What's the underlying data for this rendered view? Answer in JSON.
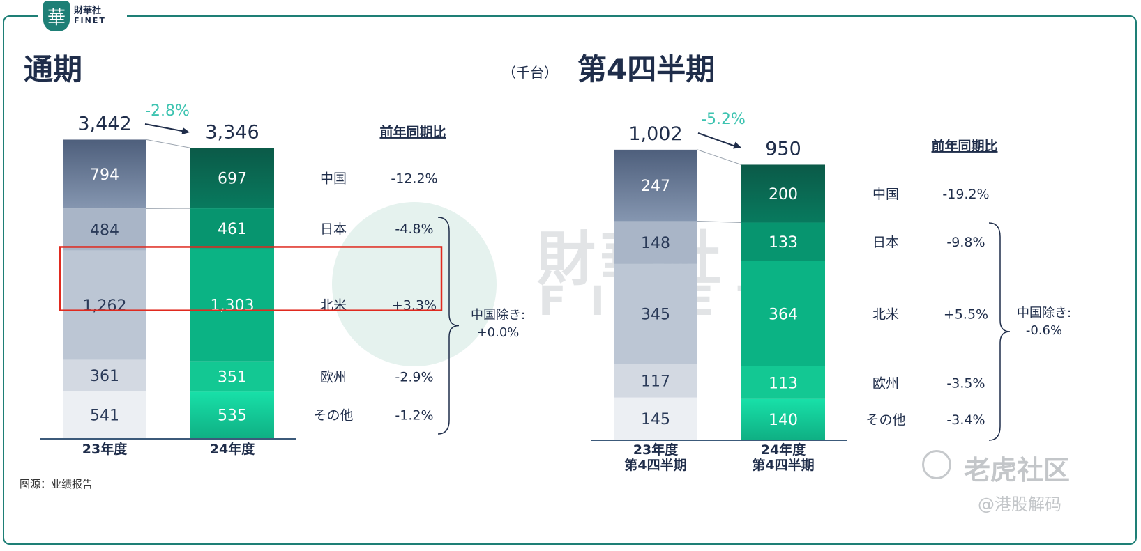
{
  "logo": {
    "glyph": "華",
    "name_cn": "財華社",
    "name_en": "FINET"
  },
  "unit_label": "（千台）",
  "source": "图源：业绩报告",
  "watermarks": {
    "finet_cn": "財華社",
    "finet_en": "FINET",
    "tiger": "老虎社区",
    "handle": "@港股解码"
  },
  "colors": {
    "frame": "#1e7f76",
    "highlight": "#e02a1f",
    "pct": "#3cc3b0"
  },
  "chart_data": [
    {
      "type": "bar",
      "title": "通期",
      "categories": [
        "23年度",
        "24年度"
      ],
      "stack_order": [
        "中国",
        "日本",
        "北米",
        "欧州",
        "その他"
      ],
      "series": [
        {
          "name": "中国",
          "values": [
            794,
            697
          ]
        },
        {
          "name": "日本",
          "values": [
            484,
            461
          ]
        },
        {
          "name": "北米",
          "values": [
            1262,
            1303
          ]
        },
        {
          "name": "欧州",
          "values": [
            361,
            351
          ]
        },
        {
          "name": "その他",
          "values": [
            541,
            535
          ]
        }
      ],
      "totals": [
        "3,442",
        "3,346"
      ],
      "value_labels": [
        [
          "794",
          "484",
          "1,262",
          "361",
          "541"
        ],
        [
          "697",
          "461",
          "1,303",
          "351",
          "535"
        ]
      ],
      "total_change": "-2.8%",
      "yoy_header": "前年同期比",
      "yoy": [
        {
          "region": "中国",
          "change": "-12.2%"
        },
        {
          "region": "日本",
          "change": "-4.8%"
        },
        {
          "region": "北米",
          "change": "+3.3%"
        },
        {
          "region": "欧州",
          "change": "-2.9%"
        },
        {
          "region": "その他",
          "change": "-1.2%"
        }
      ],
      "ex_china_label": "中国除き:",
      "ex_china_value": "+0.0%",
      "highlighted_region": "北米"
    },
    {
      "type": "bar",
      "title": "第4四半期",
      "categories": [
        "23年度\n第4四半期",
        "24年度\n第4四半期"
      ],
      "category_lines": [
        [
          "23年度",
          "第4四半期"
        ],
        [
          "24年度",
          "第4四半期"
        ]
      ],
      "stack_order": [
        "中国",
        "日本",
        "北米",
        "欧州",
        "その他"
      ],
      "series": [
        {
          "name": "中国",
          "values": [
            247,
            200
          ]
        },
        {
          "name": "日本",
          "values": [
            148,
            133
          ]
        },
        {
          "name": "北米",
          "values": [
            345,
            364
          ]
        },
        {
          "name": "欧州",
          "values": [
            117,
            113
          ]
        },
        {
          "name": "その他",
          "values": [
            145,
            140
          ]
        }
      ],
      "totals": [
        "1,002",
        "950"
      ],
      "value_labels": [
        [
          "247",
          "148",
          "345",
          "117",
          "145"
        ],
        [
          "200",
          "133",
          "364",
          "113",
          "140"
        ]
      ],
      "total_change": "-5.2%",
      "yoy_header": "前年同期比",
      "yoy": [
        {
          "region": "中国",
          "change": "-19.2%"
        },
        {
          "region": "日本",
          "change": "-9.8%"
        },
        {
          "region": "北米",
          "change": "+5.5%"
        },
        {
          "region": "欧州",
          "change": "-3.5%"
        },
        {
          "region": "その他",
          "change": "-3.4%"
        }
      ],
      "ex_china_label": "中国除き:",
      "ex_china_value": "-0.6%"
    }
  ]
}
